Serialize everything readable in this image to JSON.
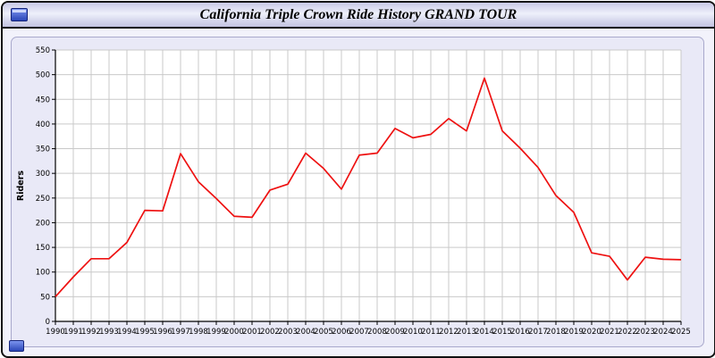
{
  "window": {
    "title": "California Triple Crown Ride History GRAND TOUR"
  },
  "chart_data": {
    "type": "line",
    "title": "California Triple Crown Ride History GRAND TOUR",
    "xlabel": "",
    "ylabel": "Riders",
    "ylim": [
      0,
      550
    ],
    "ytick_step": 50,
    "grid": true,
    "legend": "none",
    "x": [
      1990,
      1991,
      1992,
      1993,
      1994,
      1995,
      1996,
      1997,
      1998,
      1999,
      2000,
      2001,
      2002,
      2003,
      2004,
      2005,
      2006,
      2007,
      2008,
      2009,
      2010,
      2011,
      2012,
      2013,
      2014,
      2015,
      2016,
      2017,
      2018,
      2019,
      2020,
      2021,
      2022,
      2023,
      2024,
      2025
    ],
    "series": [
      {
        "name": "Riders",
        "color": "#ee1111",
        "values": [
          50,
          90,
          127,
          127,
          160,
          225,
          224,
          340,
          283,
          249,
          213,
          211,
          266,
          278,
          341,
          310,
          268,
          337,
          341,
          391,
          372,
          379,
          411,
          386,
          493,
          386,
          351,
          312,
          255,
          221,
          139,
          132,
          84,
          130,
          126,
          125
        ]
      }
    ],
    "colors": {
      "grid": "#c9c9c9",
      "axis": "#000000",
      "plot_bg": "#ffffff",
      "panel_bg": "#e9e9f7"
    }
  }
}
